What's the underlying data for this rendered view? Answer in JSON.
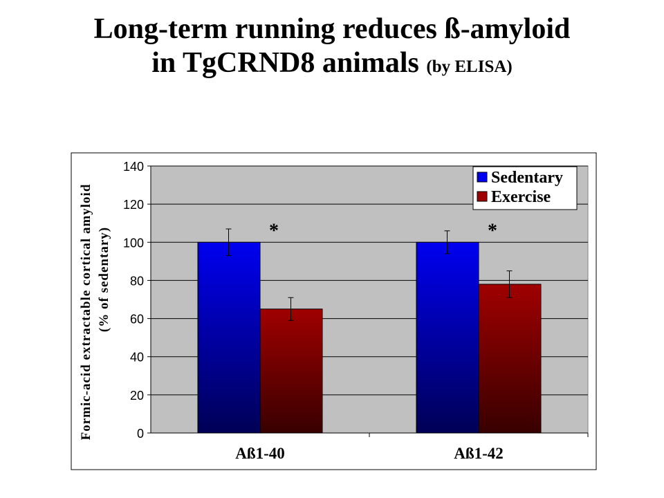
{
  "slide": {
    "title_line1": "Long-term running reduces ß-amyloid",
    "title_line2": "in TgCRND8 animals",
    "title_suffix": "(by ELISA)"
  },
  "chart_data": {
    "type": "bar",
    "categories": [
      "Aß1-40",
      "Aß1-42"
    ],
    "series": [
      {
        "name": "Sedentary",
        "values": [
          100,
          100
        ],
        "error": [
          7,
          6
        ],
        "color_top": "#0000f0",
        "color_bottom": "#000055"
      },
      {
        "name": "Exercise",
        "values": [
          65,
          78
        ],
        "error": [
          6,
          7
        ],
        "color_top": "#a00000",
        "color_bottom": "#380000"
      }
    ],
    "significance": [
      "*",
      "*"
    ],
    "ylabel_line1": "Formic-acid extractable cortical amyloid",
    "ylabel_line2": "(% of sedentary)",
    "xlabel": "",
    "ylim": [
      0,
      140
    ],
    "yticks": [
      0,
      20,
      40,
      60,
      80,
      100,
      120,
      140
    ],
    "grid": true,
    "legend_position": "top-right",
    "plot_background": "#c0c0c0"
  }
}
